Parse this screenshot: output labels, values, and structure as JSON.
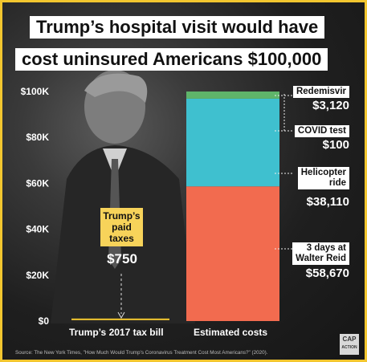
{
  "title_lines": [
    "Trump’s hospital visit would have",
    "cost uninsured Americans $100,000"
  ],
  "paid_label": [
    "Trump’s",
    "paid",
    "taxes"
  ],
  "paid_value_text": "$750",
  "source_text": "Source: The New York Times, \"How Much Would Trump's Coronavirus Treatment Cost Most Americans?\" (2020).",
  "logo_text": "CAP ACTION",
  "colors": {
    "border": "#f2c62f",
    "helicopter": "#f26b4f",
    "walter_reid": "#f26b4f",
    "covid_test": "#3fc0cf",
    "remdesivir": "#5fb46a",
    "tax_bar": "#f2c62f"
  },
  "chart_data": {
    "type": "bar",
    "stacked": true,
    "categories": [
      "Trump’s 2017 tax bill",
      "Estimated costs"
    ],
    "ylim": [
      0,
      100000
    ],
    "y_ticks": [
      "$0",
      "$20K",
      "$40K",
      "$60K",
      "$80K",
      "$100K"
    ],
    "y_tick_values": [
      0,
      20000,
      40000,
      60000,
      80000,
      100000
    ],
    "grid": false,
    "series": [
      {
        "name": "3 days at Walter Reid",
        "label_lines": [
          "3 days at",
          "Walter Reid"
        ],
        "value_text": "$58,670",
        "color": "#f26b4f",
        "values": [
          0,
          58670
        ]
      },
      {
        "name": "Helicopter ride",
        "label_lines": [
          "Helicopter",
          "ride"
        ],
        "value_text": "$38,110",
        "color": "#3fc0cf",
        "values": [
          0,
          38110
        ]
      },
      {
        "name": "COVID test",
        "label_lines": [
          "COVID test"
        ],
        "value_text": "$100",
        "color": "#3fc0cf",
        "values": [
          0,
          100
        ]
      },
      {
        "name": "Redemisvir",
        "label_lines": [
          "Redemisvir"
        ],
        "value_text": "$3,120",
        "color": "#5fb46a",
        "values": [
          0,
          3120
        ]
      },
      {
        "name": "Trump’s paid taxes",
        "value_text": "$750",
        "color": "#f2c62f",
        "values": [
          750,
          0
        ]
      }
    ]
  }
}
